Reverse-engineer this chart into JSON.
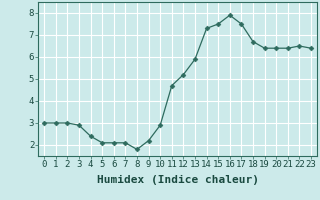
{
  "x": [
    0,
    1,
    2,
    3,
    4,
    5,
    6,
    7,
    8,
    9,
    10,
    11,
    12,
    13,
    14,
    15,
    16,
    17,
    18,
    19,
    20,
    21,
    22,
    23
  ],
  "y": [
    3.0,
    3.0,
    3.0,
    2.9,
    2.4,
    2.1,
    2.1,
    2.1,
    1.8,
    2.2,
    2.9,
    4.7,
    5.2,
    5.9,
    7.3,
    7.5,
    7.9,
    7.5,
    6.7,
    6.4,
    6.4,
    6.4,
    6.5,
    6.4
  ],
  "xlabel": "Humidex (Indice chaleur)",
  "ylim": [
    1.5,
    8.5
  ],
  "xlim": [
    -0.5,
    23.5
  ],
  "yticks": [
    2,
    3,
    4,
    5,
    6,
    7,
    8
  ],
  "xticks": [
    0,
    1,
    2,
    3,
    4,
    5,
    6,
    7,
    8,
    9,
    10,
    11,
    12,
    13,
    14,
    15,
    16,
    17,
    18,
    19,
    20,
    21,
    22,
    23
  ],
  "line_color": "#2e6b5e",
  "marker": "D",
  "marker_size": 2.5,
  "bg_color": "#cceaea",
  "grid_color": "#ffffff",
  "xlabel_fontsize": 8,
  "tick_fontsize": 6.5
}
